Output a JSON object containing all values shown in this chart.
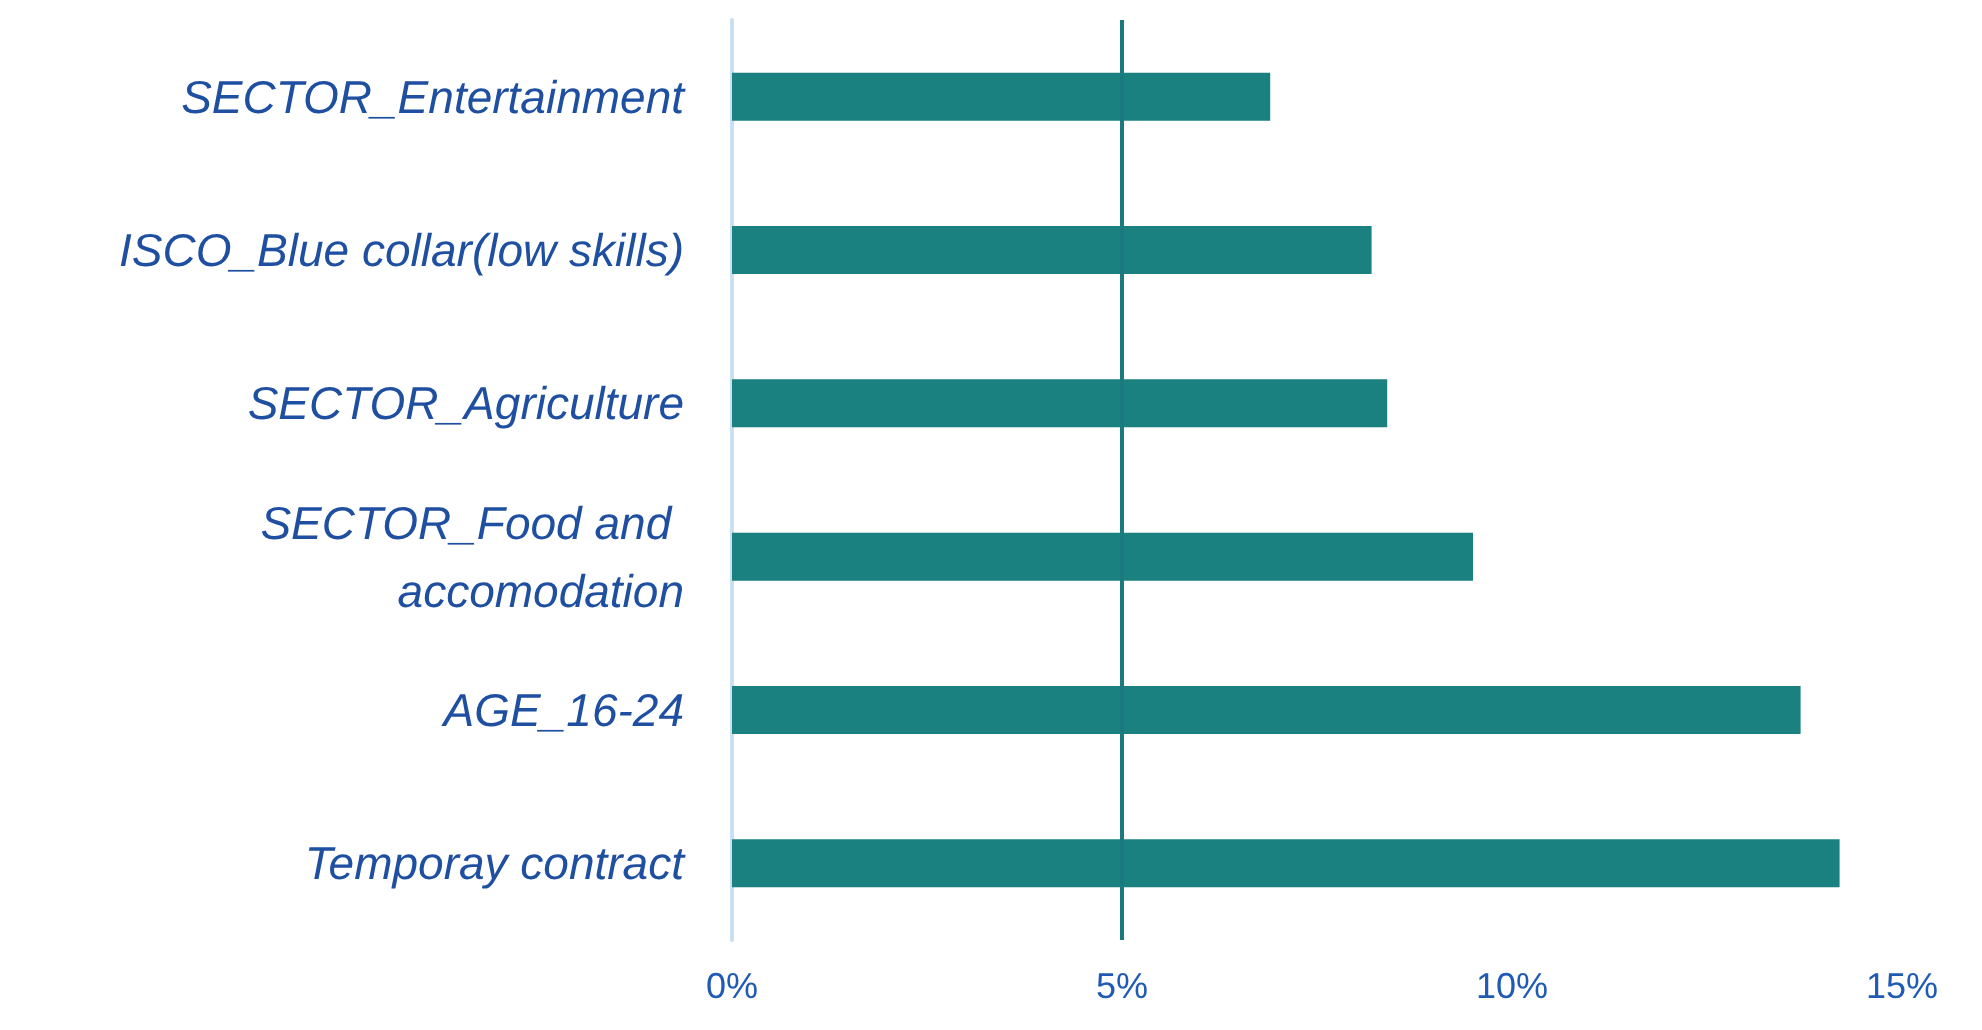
{
  "chart_data": {
    "type": "bar",
    "orientation": "horizontal",
    "categories": [
      "SECTOR_Entertainment",
      "ISCO_Blue collar(low skills)",
      "SECTOR_Agriculture",
      "SECTOR_Food and accomodation",
      "AGE_16-24",
      "Temporay contract"
    ],
    "values": [
      6.9,
      8.2,
      8.4,
      9.5,
      13.7,
      14.2
    ],
    "color": "#1b8080",
    "xlim": [
      0,
      15
    ],
    "xticks": [
      {
        "value": 0,
        "label": "0%"
      },
      {
        "value": 5,
        "label": "5%"
      },
      {
        "value": 10,
        "label": "10%"
      },
      {
        "value": 15,
        "label": "15%"
      }
    ],
    "grid": false,
    "ref_lines": [
      {
        "axis": "x",
        "value": 5,
        "color": "#1b7a80"
      }
    ]
  }
}
